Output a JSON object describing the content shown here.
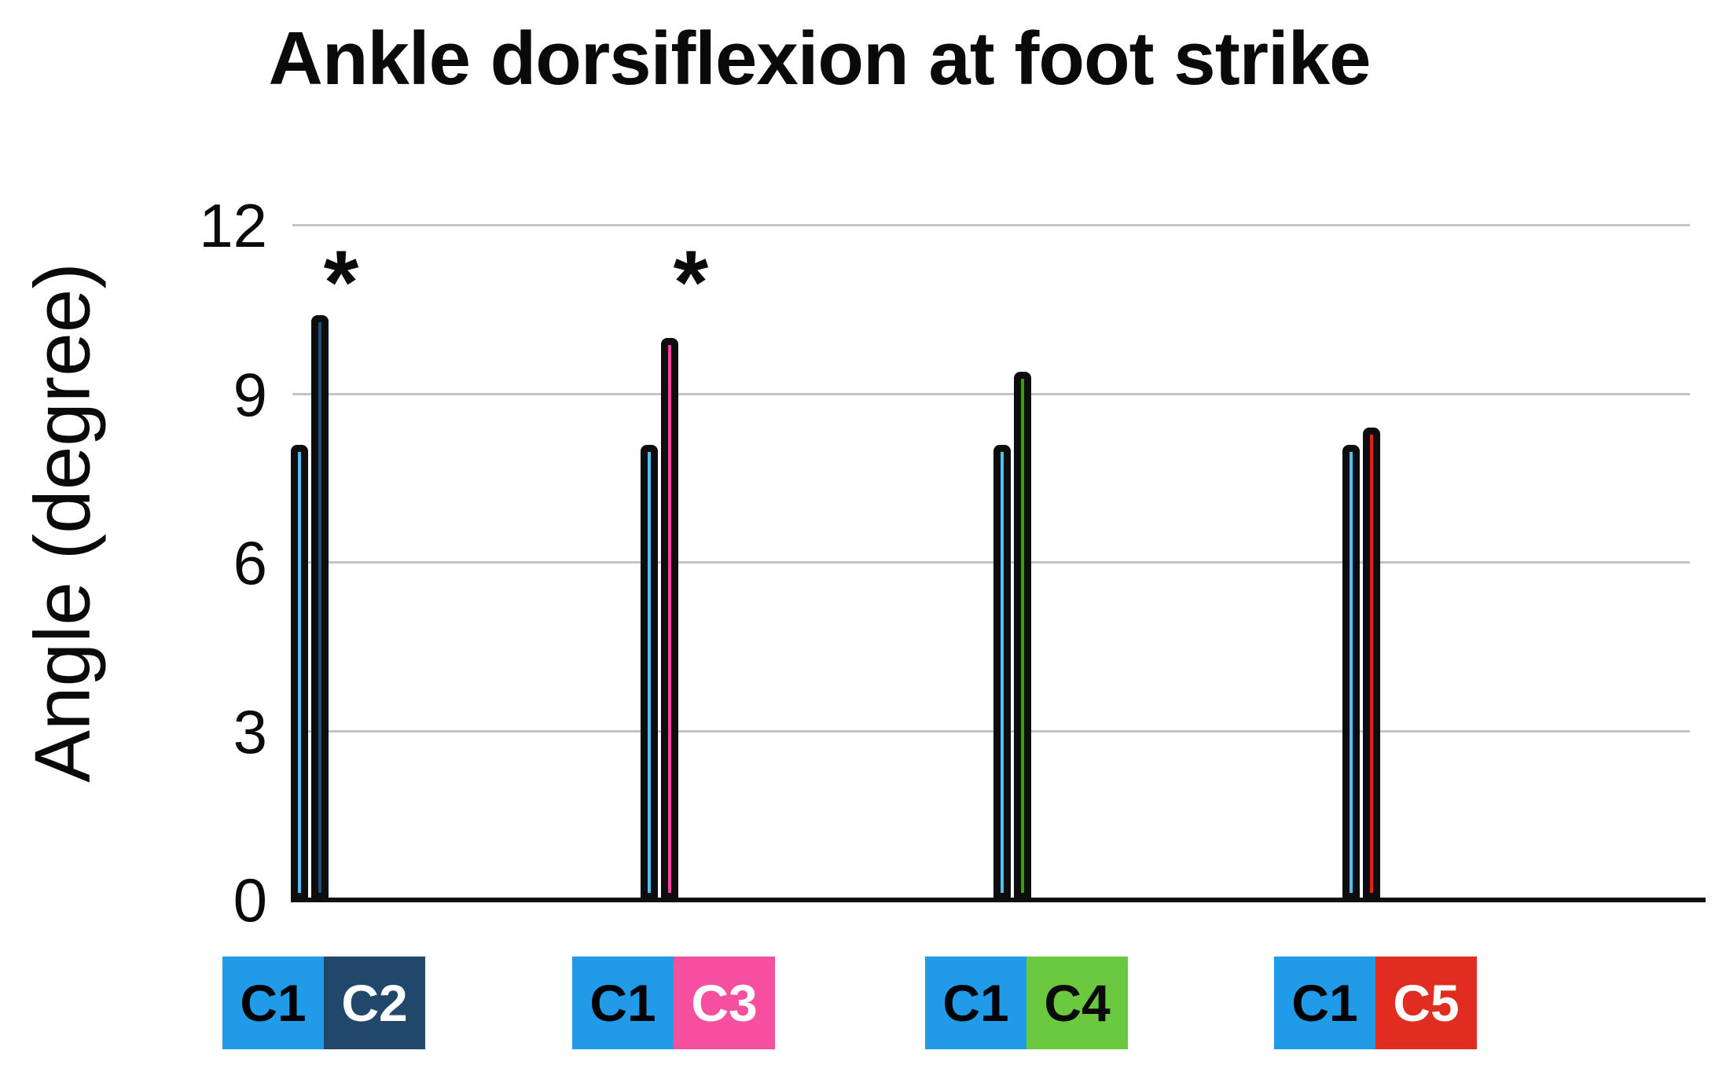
{
  "title": "Ankle dorsiflexion at foot strike",
  "chart_data": {
    "type": "bar",
    "title": "Ankle dorsiflexion at foot strike",
    "xlabel": "",
    "ylabel": "Angle (degree)",
    "ylim": [
      0,
      12
    ],
    "yticks": [
      0,
      3,
      6,
      9,
      12
    ],
    "grid": true,
    "legend_position": "below-axis",
    "significance_marker": "*",
    "categories": [
      "C1 vs C2",
      "C1 vs C3",
      "C1 vs C4",
      "C1 vs C5"
    ],
    "groups": [
      {
        "labels": [
          "C1",
          "C2"
        ],
        "values": [
          8.1,
          10.4
        ],
        "significant": true,
        "bar_colors": [
          "#4FC0F6",
          "#1D4E7B"
        ],
        "legend_colors": [
          "#1F9BE8",
          "#21486B"
        ],
        "legend_text_colors": [
          "#000000",
          "#FFFFFF"
        ]
      },
      {
        "labels": [
          "C1",
          "C3"
        ],
        "values": [
          8.1,
          10.0
        ],
        "significant": true,
        "bar_colors": [
          "#4FC0F6",
          "#F6419C"
        ],
        "legend_colors": [
          "#1F9BE8",
          "#F4509F"
        ],
        "legend_text_colors": [
          "#000000",
          "#FFFFFF"
        ]
      },
      {
        "labels": [
          "C1",
          "C4"
        ],
        "values": [
          8.1,
          9.4
        ],
        "significant": false,
        "bar_colors": [
          "#4FC0F6",
          "#2DA310"
        ],
        "legend_colors": [
          "#1F9BE8",
          "#6BC940"
        ],
        "legend_text_colors": [
          "#000000",
          "#0B0B0B"
        ]
      },
      {
        "labels": [
          "C1",
          "C5"
        ],
        "values": [
          8.1,
          8.4
        ],
        "significant": false,
        "bar_colors": [
          "#4FC0F6",
          "#E3211B"
        ],
        "legend_colors": [
          "#1F9BE8",
          "#E02C21"
        ],
        "legend_text_colors": [
          "#000000",
          "#FFFFFF"
        ]
      }
    ],
    "colors": {
      "grid": "#C3C3C3",
      "axis": "#111111",
      "bar_outline": "#0D0D0D",
      "text": "#0A0A0A"
    }
  }
}
